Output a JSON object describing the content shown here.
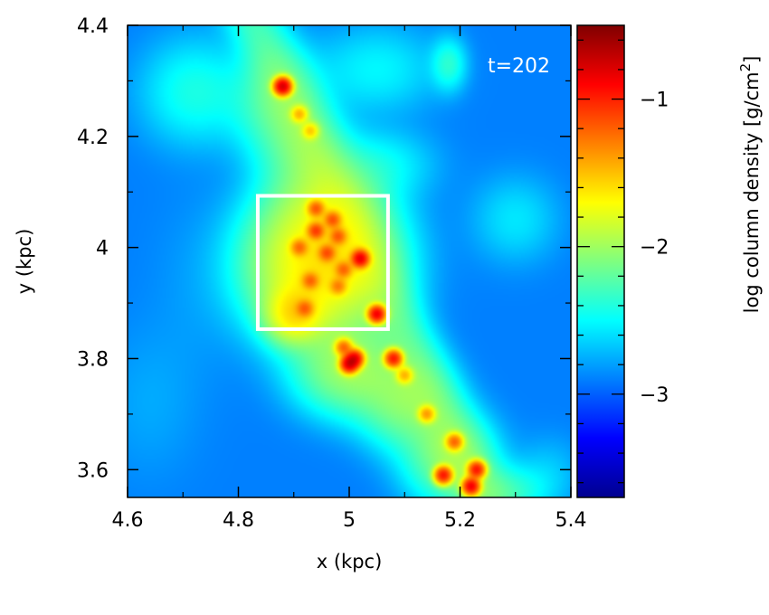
{
  "chart_data": {
    "type": "heatmap",
    "title": "",
    "xlabel": "x (kpc)",
    "ylabel": "y (kpc)",
    "xlim": [
      4.6,
      5.4
    ],
    "ylim": [
      3.55,
      4.4
    ],
    "x_ticks": [
      4.6,
      4.8,
      5.0,
      5.2,
      5.4
    ],
    "x_tick_labels": [
      "4.6",
      "4.8",
      "5",
      "5.2",
      "5.4"
    ],
    "y_ticks": [
      3.6,
      3.8,
      4.0,
      4.2,
      4.4
    ],
    "y_tick_labels": [
      "3.6",
      "3.8",
      "4",
      "4.2",
      "4.4"
    ],
    "annotation": "t=202",
    "highlight_box": {
      "x0": 4.835,
      "x1": 5.07,
      "y0": 3.853,
      "y1": 4.093,
      "color": "#ffffff"
    },
    "colorbar": {
      "label": "log column density [g/cm",
      "label_sup": "2",
      "label_close": "]",
      "range": [
        -3.7,
        -0.5
      ],
      "ticks": [
        -3,
        -2,
        -1
      ],
      "tick_labels": [
        "−3",
        "−2",
        "−1"
      ]
    },
    "background_level": -2.9,
    "features": [
      {
        "x": 4.73,
        "y": 3.93,
        "level": -3.55,
        "sigma_x": 0.06,
        "sigma_y": 0.11
      },
      {
        "x": 4.64,
        "y": 3.72,
        "level": -3.35,
        "sigma_x": 0.06,
        "sigma_y": 0.09
      },
      {
        "x": 4.87,
        "y": 4.26,
        "level": -2.35,
        "sigma_x": 0.05,
        "sigma_y": 0.06
      },
      {
        "x": 4.92,
        "y": 4.17,
        "level": -2.4,
        "sigma_x": 0.05,
        "sigma_y": 0.05
      },
      {
        "x": 4.96,
        "y": 4.08,
        "level": -2.3,
        "sigma_x": 0.06,
        "sigma_y": 0.05
      },
      {
        "x": 4.95,
        "y": 3.97,
        "level": -1.65,
        "sigma_x": 0.075,
        "sigma_y": 0.075
      },
      {
        "x": 5.0,
        "y": 3.78,
        "level": -2.1,
        "sigma_x": 0.06,
        "sigma_y": 0.05
      },
      {
        "x": 5.1,
        "y": 3.72,
        "level": -2.2,
        "sigma_x": 0.05,
        "sigma_y": 0.05
      },
      {
        "x": 5.18,
        "y": 3.62,
        "level": -2.2,
        "sigma_x": 0.05,
        "sigma_y": 0.05
      },
      {
        "x": 5.28,
        "y": 3.56,
        "level": -2.5,
        "sigma_x": 0.05,
        "sigma_y": 0.03
      },
      {
        "x": 4.72,
        "y": 4.28,
        "level": -2.6,
        "sigma_x": 0.06,
        "sigma_y": 0.06
      },
      {
        "x": 5.05,
        "y": 4.32,
        "level": -2.75,
        "sigma_x": 0.07,
        "sigma_y": 0.05
      },
      {
        "x": 5.18,
        "y": 4.33,
        "level": -2.55,
        "sigma_x": 0.02,
        "sigma_y": 0.03
      },
      {
        "x": 5.06,
        "y": 4.15,
        "level": -2.75,
        "sigma_x": 0.06,
        "sigma_y": 0.04
      },
      {
        "x": 4.9,
        "y": 3.88,
        "level": -1.75,
        "sigma_x": 0.03,
        "sigma_y": 0.03
      },
      {
        "x": 5.3,
        "y": 4.05,
        "level": -2.85,
        "sigma_x": 0.05,
        "sigma_y": 0.05
      },
      {
        "x": 5.36,
        "y": 3.6,
        "level": -3.1,
        "sigma_x": 0.04,
        "sigma_y": 0.04
      }
    ],
    "clumps": [
      {
        "x": 4.88,
        "y": 4.29,
        "level": -0.8
      },
      {
        "x": 4.91,
        "y": 4.24,
        "level": -1.6
      },
      {
        "x": 4.93,
        "y": 4.21,
        "level": -1.7
      },
      {
        "x": 4.94,
        "y": 4.07,
        "level": -1.3
      },
      {
        "x": 4.94,
        "y": 4.03,
        "level": -1.2
      },
      {
        "x": 4.97,
        "y": 4.05,
        "level": -1.3
      },
      {
        "x": 4.91,
        "y": 4.0,
        "level": -1.4
      },
      {
        "x": 4.96,
        "y": 3.99,
        "level": -1.3
      },
      {
        "x": 4.98,
        "y": 4.02,
        "level": -1.35
      },
      {
        "x": 5.02,
        "y": 3.98,
        "level": -0.9
      },
      {
        "x": 4.99,
        "y": 3.96,
        "level": -1.4
      },
      {
        "x": 4.93,
        "y": 3.94,
        "level": -1.4
      },
      {
        "x": 4.98,
        "y": 3.93,
        "level": -1.5
      },
      {
        "x": 4.92,
        "y": 3.89,
        "level": -1.4
      },
      {
        "x": 5.05,
        "y": 3.88,
        "level": -0.9
      },
      {
        "x": 4.99,
        "y": 3.82,
        "level": -1.3
      },
      {
        "x": 5.01,
        "y": 3.8,
        "level": -0.9
      },
      {
        "x": 5.0,
        "y": 3.79,
        "level": -0.85
      },
      {
        "x": 5.08,
        "y": 3.8,
        "level": -1.0
      },
      {
        "x": 5.1,
        "y": 3.77,
        "level": -1.6
      },
      {
        "x": 5.14,
        "y": 3.7,
        "level": -1.5
      },
      {
        "x": 5.19,
        "y": 3.65,
        "level": -1.3
      },
      {
        "x": 5.17,
        "y": 3.59,
        "level": -1.0
      },
      {
        "x": 5.23,
        "y": 3.6,
        "level": -1.0
      },
      {
        "x": 5.22,
        "y": 3.57,
        "level": -0.9
      }
    ]
  }
}
